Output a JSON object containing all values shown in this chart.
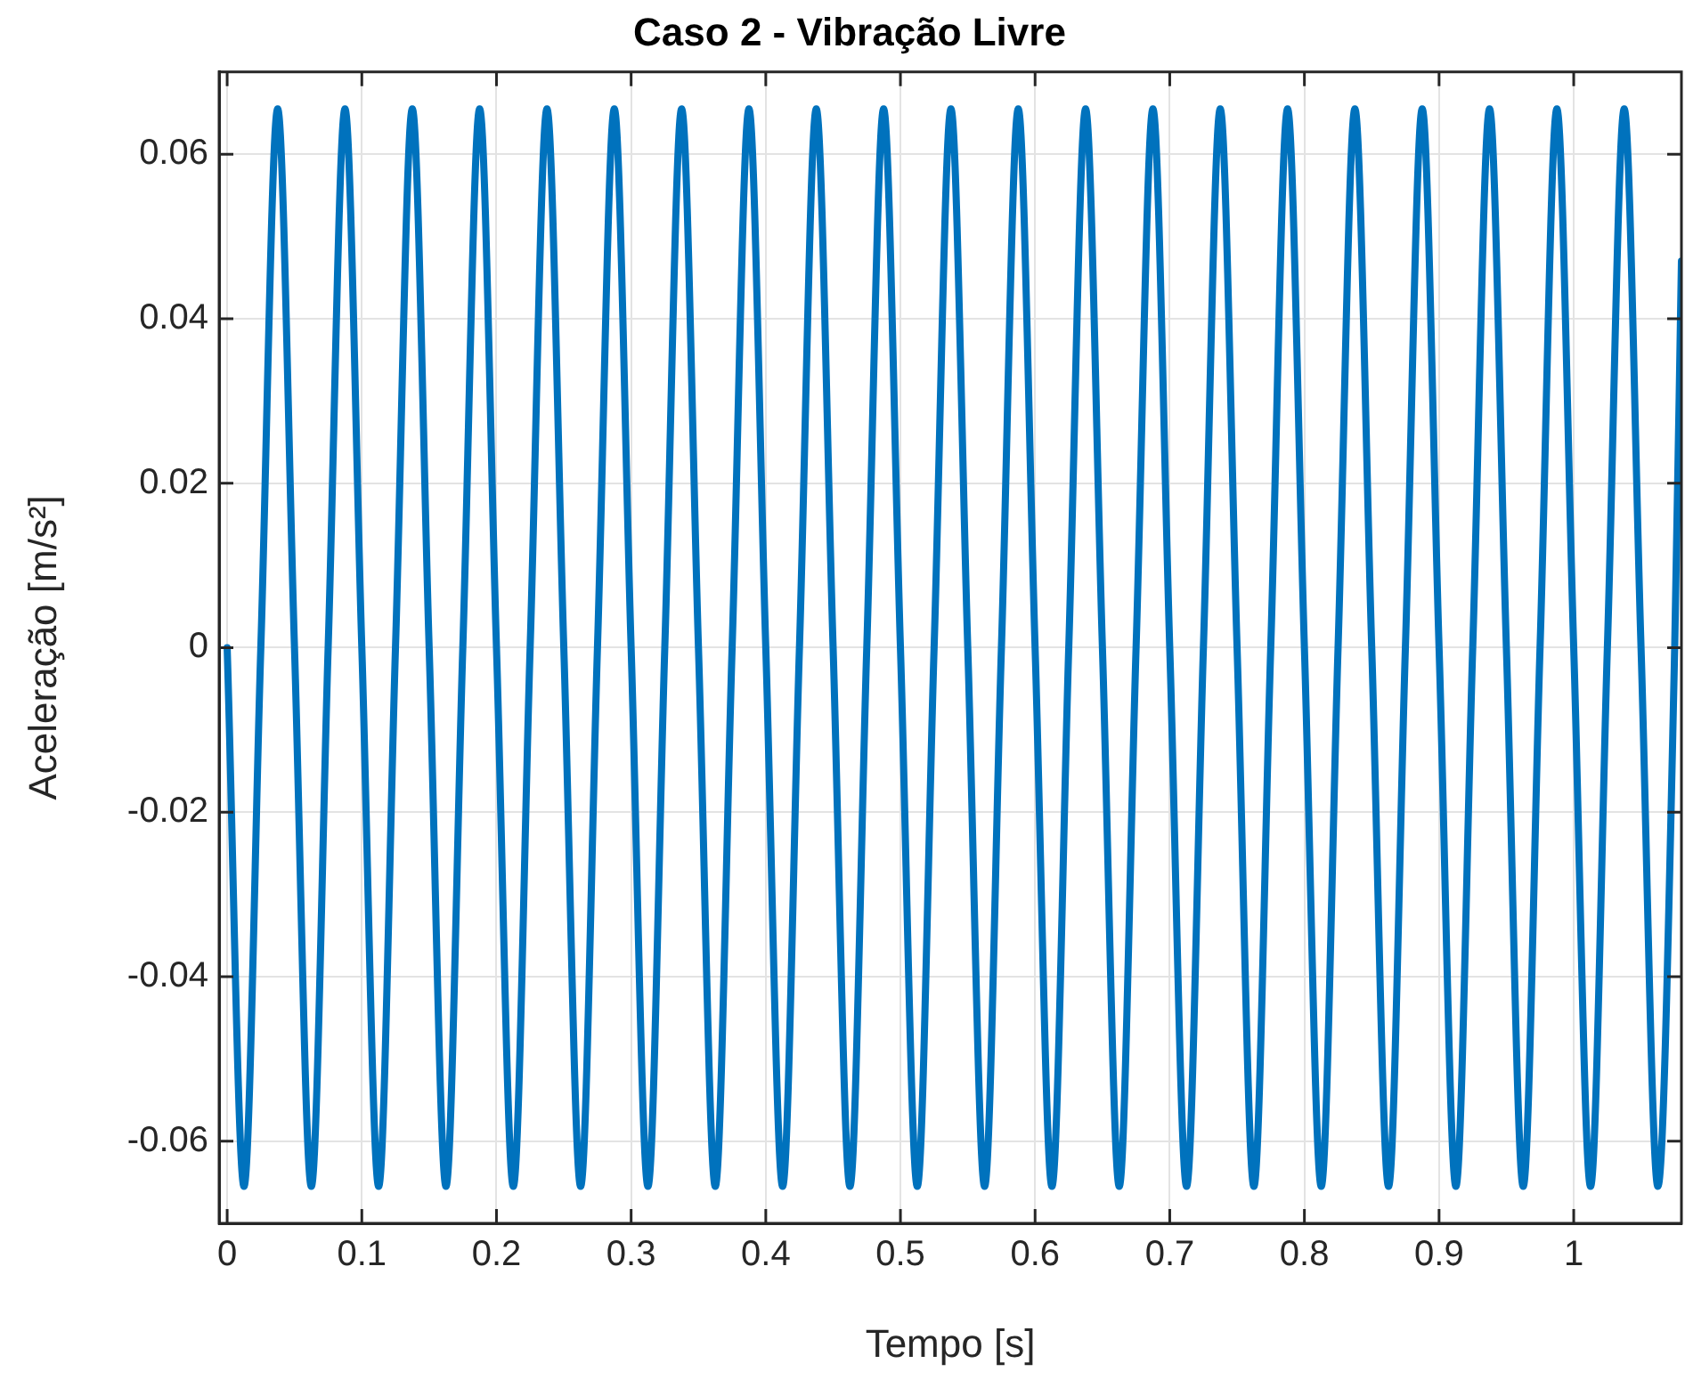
{
  "chart_data": {
    "type": "line",
    "title": "Caso 2 - Vibração Livre",
    "xlabel": "Tempo [s]",
    "ylabel": "Aceleração [m/s²]",
    "x": [
      0,
      0.0125,
      0.025,
      0.0375,
      0.05,
      0.0625,
      0.075,
      0.0875,
      0.1,
      0.1125,
      0.125,
      0.1375,
      0.15,
      0.1625,
      0.175,
      0.1875,
      0.2,
      0.2125,
      0.225,
      0.2375,
      0.25,
      0.2625,
      0.275,
      0.2875,
      0.3,
      0.3125,
      0.325,
      0.3375,
      0.35,
      0.3625,
      0.375,
      0.3875,
      0.4,
      0.4125,
      0.425,
      0.4375,
      0.45,
      0.4625,
      0.475,
      0.4875,
      0.5,
      0.5125,
      0.525,
      0.5375,
      0.55,
      0.5625,
      0.575,
      0.5875,
      0.6,
      0.6125,
      0.625,
      0.6375,
      0.65,
      0.6625,
      0.675,
      0.6875,
      0.7,
      0.7125,
      0.725,
      0.7375,
      0.75,
      0.7625,
      0.775,
      0.7875,
      0.8,
      0.8125,
      0.825,
      0.8375,
      0.85,
      0.8625,
      0.875,
      0.8875,
      0.9,
      0.9125,
      0.925,
      0.9375,
      0.95,
      0.9625,
      0.975,
      0.9875,
      1,
      1.0125,
      1.025,
      1.0375,
      1.05,
      1.0625,
      1.075,
      1.08
    ],
    "series": [
      {
        "color": "#0072bd",
        "values": [
          0,
          -0.0655,
          0,
          0.0655,
          0,
          -0.0655,
          0,
          0.0655,
          0,
          -0.0655,
          0,
          0.0655,
          0,
          -0.0655,
          0,
          0.0655,
          0,
          -0.0655,
          0,
          0.0655,
          0,
          -0.0655,
          0,
          0.0655,
          0,
          -0.0655,
          0,
          0.0655,
          0,
          -0.0655,
          0,
          0.0655,
          0,
          -0.0655,
          0,
          0.0655,
          0,
          -0.0655,
          0,
          0.0655,
          0,
          -0.0655,
          0,
          0.0655,
          0,
          -0.0655,
          0,
          0.0655,
          0,
          -0.0655,
          0,
          0.0655,
          0,
          -0.0655,
          0,
          0.0655,
          0,
          -0.0655,
          0,
          0.0655,
          0,
          -0.0655,
          0,
          0.0655,
          0,
          -0.0655,
          0,
          0.0655,
          0,
          -0.0655,
          0,
          0.0655,
          0,
          -0.0655,
          0,
          0.0655,
          0,
          -0.0655,
          0,
          0.0655,
          0,
          -0.0655,
          0,
          0.0655,
          0,
          -0.0655,
          0,
          0.047
        ]
      }
    ],
    "xlim": [
      -0.006,
      1.08
    ],
    "xticks": [
      0,
      0.1,
      0.2,
      0.3,
      0.4,
      0.5,
      0.6,
      0.7,
      0.8,
      0.9,
      1
    ],
    "ylim": [
      -0.07,
      0.07
    ],
    "yticks": [
      -0.06,
      -0.04,
      -0.02,
      0,
      0.02,
      0.04,
      0.06
    ],
    "grid": true,
    "legend": false,
    "marker": "none",
    "line_style": "solid"
  }
}
